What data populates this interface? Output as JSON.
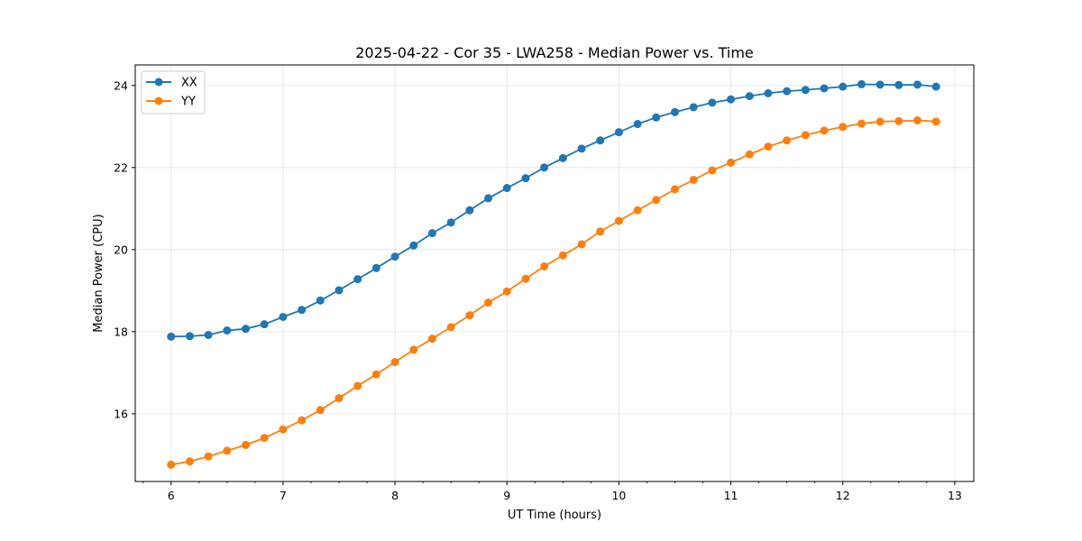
{
  "chart_data": {
    "type": "line",
    "title": "2025-04-22 - Cor 35 - LWA258 - Median Power vs. Time",
    "xlabel": "UT Time (hours)",
    "ylabel": "Median Power (CPU)",
    "xlim": [
      5.68,
      13.17
    ],
    "ylim": [
      14.35,
      24.5
    ],
    "xticks": [
      6,
      7,
      8,
      9,
      10,
      11,
      12,
      13
    ],
    "yticks": [
      16,
      18,
      20,
      22,
      24
    ],
    "grid": true,
    "legend_position": "top-left",
    "x": [
      6.0,
      6.167,
      6.333,
      6.5,
      6.667,
      6.833,
      7.0,
      7.167,
      7.333,
      7.5,
      7.667,
      7.833,
      8.0,
      8.167,
      8.333,
      8.5,
      8.667,
      8.833,
      9.0,
      9.167,
      9.333,
      9.5,
      9.667,
      9.833,
      10.0,
      10.167,
      10.333,
      10.5,
      10.667,
      10.833,
      11.0,
      11.167,
      11.333,
      11.5,
      11.667,
      11.833,
      12.0,
      12.167,
      12.333,
      12.5,
      12.667,
      12.833
    ],
    "series": [
      {
        "name": "XX",
        "color": "#1f77b4",
        "values": [
          17.88,
          17.89,
          17.92,
          18.03,
          18.07,
          18.18,
          18.36,
          18.53,
          18.76,
          19.01,
          19.28,
          19.55,
          19.83,
          20.1,
          20.4,
          20.66,
          20.96,
          21.25,
          21.5,
          21.74,
          22.0,
          22.23,
          22.46,
          22.66,
          22.86,
          23.06,
          23.22,
          23.35,
          23.47,
          23.58,
          23.66,
          23.74,
          23.81,
          23.86,
          23.89,
          23.93,
          23.97,
          24.03,
          24.02,
          24.01,
          24.02,
          23.97
        ]
      },
      {
        "name": "YY",
        "color": "#ff7f0e",
        "values": [
          14.76,
          14.84,
          14.96,
          15.1,
          15.24,
          15.41,
          15.62,
          15.84,
          16.09,
          16.38,
          16.68,
          16.96,
          17.26,
          17.56,
          17.83,
          18.11,
          18.4,
          18.71,
          18.98,
          19.29,
          19.59,
          19.86,
          20.13,
          20.44,
          20.7,
          20.96,
          21.21,
          21.47,
          21.7,
          21.93,
          22.12,
          22.32,
          22.51,
          22.66,
          22.79,
          22.9,
          22.99,
          23.07,
          23.12,
          23.13,
          23.15,
          23.12
        ]
      }
    ]
  }
}
